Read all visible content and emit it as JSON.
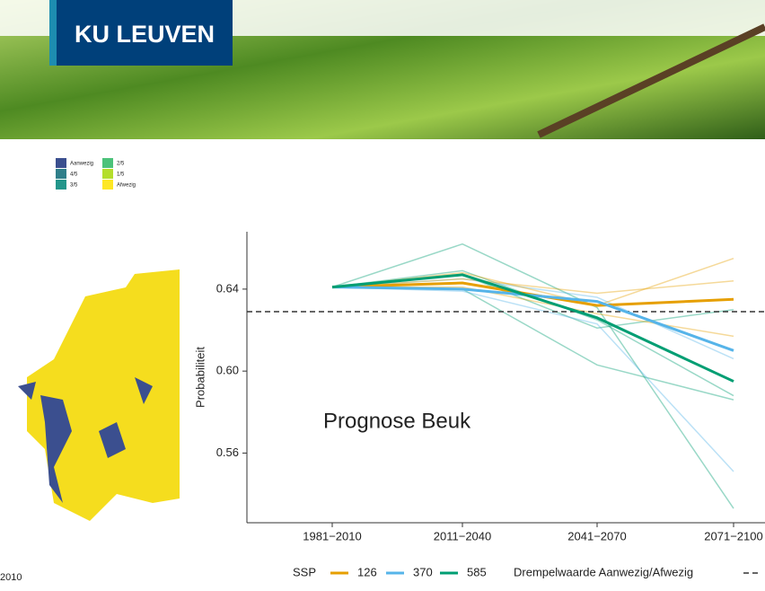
{
  "header": {
    "logo": "KU LEUVEN"
  },
  "map": {
    "legend": [
      "Aanwezig",
      "4/5",
      "3/5",
      "2/5",
      "1/5",
      "Afwezig"
    ],
    "legend_colors": [
      "#3b4f8f",
      "#2f7f8a",
      "#23968b",
      "#4cc27a",
      "#b4de2c",
      "#fde725"
    ],
    "caption": "2010"
  },
  "chart_data": {
    "type": "line",
    "ylabel": "Probabiliteit",
    "annotation": "Prognose Beuk",
    "legend_title": "SSP",
    "categories": [
      "1981−2010",
      "2011−2040",
      "2041−2070",
      "2071−2100"
    ],
    "ylim": [
      0.526,
      0.668
    ],
    "yticks": [
      0.56,
      {
        "value": 0.6,
        "label": "0.60"
      },
      0.64
    ],
    "series": [
      {
        "name": "126",
        "color": "#e69f00",
        "values": [
          0.641,
          0.643,
          0.632,
          0.635
        ]
      },
      {
        "name": "370",
        "color": "#56b4e9",
        "values": [
          0.641,
          0.64,
          0.634,
          0.61
        ]
      },
      {
        "name": "585",
        "color": "#009e73",
        "values": [
          0.641,
          0.647,
          0.626,
          0.595
        ]
      }
    ],
    "members": [
      {
        "color": "#009e73",
        "values": [
          0.641,
          0.662,
          0.631,
          0.533
        ]
      },
      {
        "color": "#009e73",
        "values": [
          0.641,
          0.649,
          0.625,
          0.588
        ]
      },
      {
        "color": "#009e73",
        "values": [
          0.641,
          0.64,
          0.603,
          0.586
        ]
      },
      {
        "color": "#009e73",
        "values": [
          0.641,
          0.647,
          0.621,
          0.63
        ]
      },
      {
        "color": "#56b4e9",
        "values": [
          0.641,
          0.639,
          0.623,
          0.551
        ]
      },
      {
        "color": "#56b4e9",
        "values": [
          0.641,
          0.645,
          0.636,
          0.606
        ]
      },
      {
        "color": "#e69f00",
        "values": [
          0.641,
          0.648,
          0.632,
          0.655
        ]
      },
      {
        "color": "#e69f00",
        "values": [
          0.641,
          0.645,
          0.638,
          0.644
        ]
      },
      {
        "color": "#e69f00",
        "values": [
          0.641,
          0.641,
          0.628,
          0.617
        ]
      }
    ],
    "threshold": {
      "name": "Drempelwaarde Aanwezig/Afwezig",
      "value": 0.629
    }
  }
}
